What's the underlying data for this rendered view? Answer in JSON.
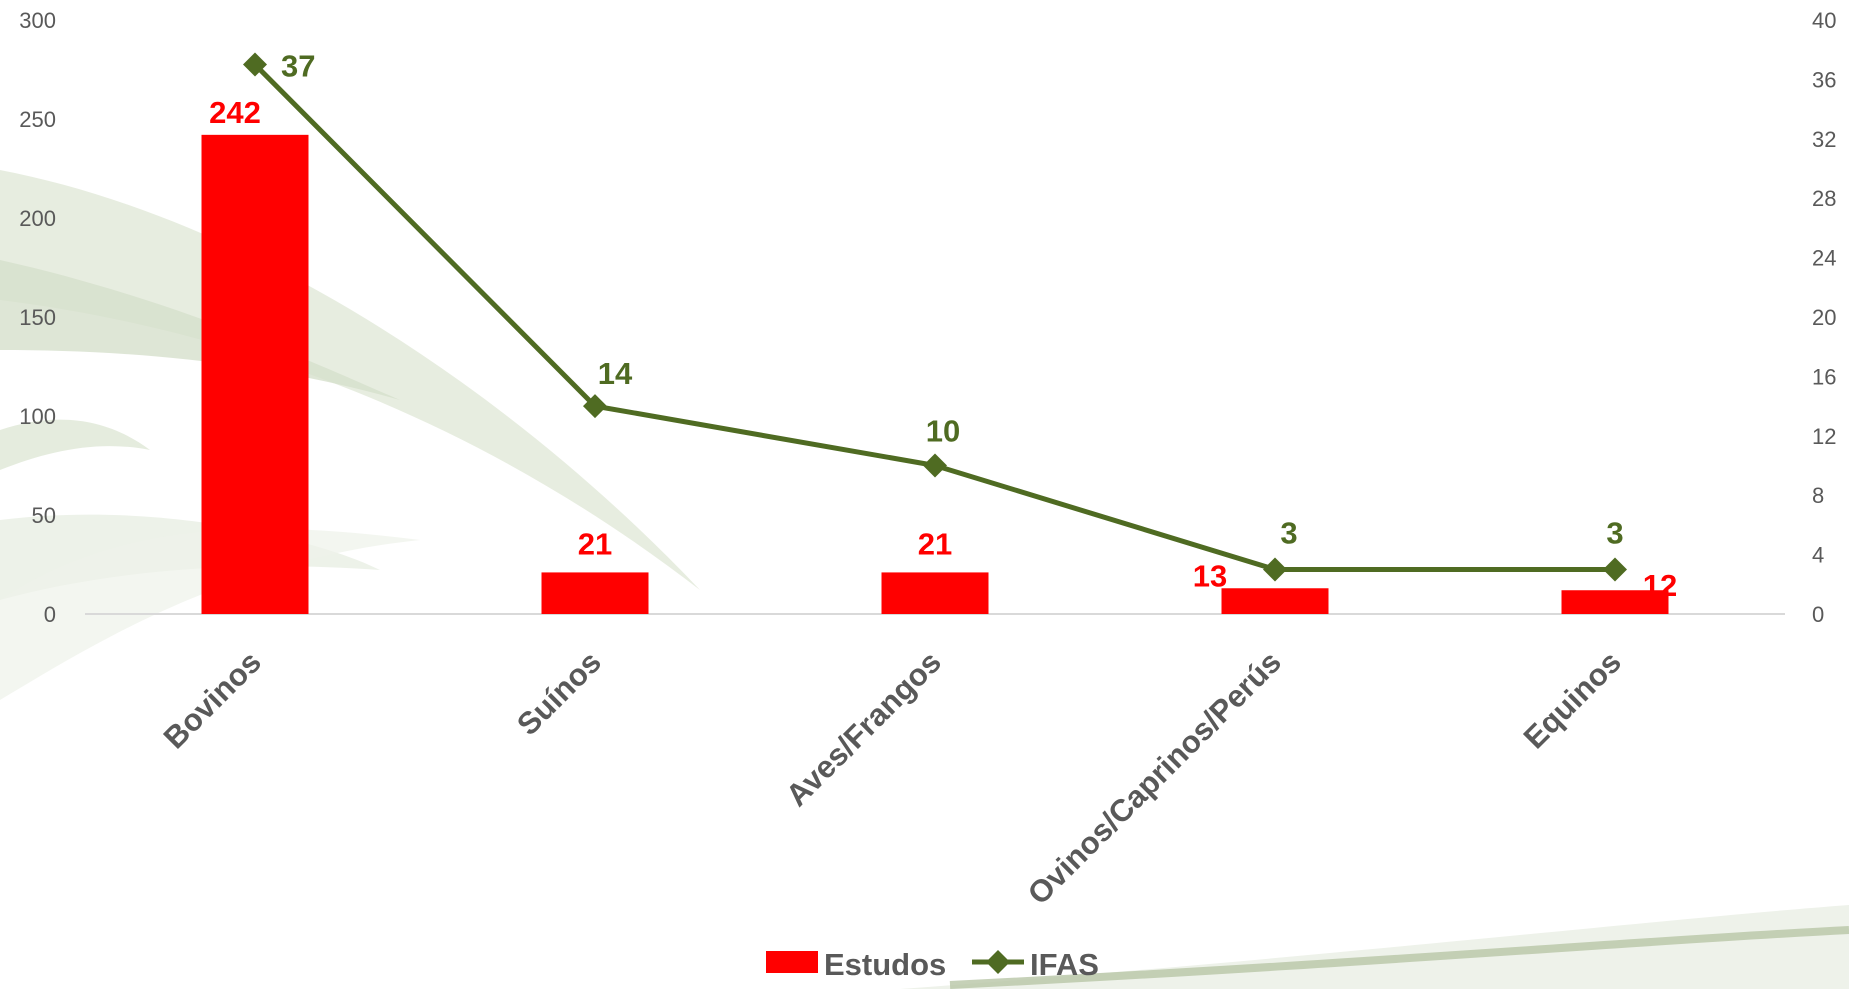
{
  "colors": {
    "bar": "#ff0000",
    "line": "#4f6b22",
    "axis_text": "#595959",
    "axis_line": "#d9d9d9"
  },
  "chart_data": {
    "type": "bar",
    "categories": [
      "Bovinos",
      "Suínos",
      "Aves/Frangos",
      "Ovinos/Caprinos/Perús",
      "Equinos"
    ],
    "series": [
      {
        "name": "Estudos",
        "type": "bar",
        "axis": "left",
        "values": [
          242,
          21,
          21,
          13,
          12
        ]
      },
      {
        "name": "IFAS",
        "type": "line",
        "axis": "right",
        "marker": "diamond",
        "values": [
          37,
          14,
          10,
          3,
          3
        ]
      }
    ],
    "y_left": {
      "ylim": [
        0,
        300
      ],
      "ticks": [
        "0",
        "50",
        "100",
        "150",
        "200",
        "250",
        "300"
      ]
    },
    "y_right": {
      "ylim": [
        0,
        40
      ],
      "ticks": [
        "0",
        "4",
        "8",
        "12",
        "16",
        "20",
        "24",
        "28",
        "32",
        "36",
        "40"
      ]
    },
    "grid": false,
    "legend": {
      "position": "bottom",
      "entries": [
        "Estudos",
        "IFAS"
      ]
    }
  }
}
